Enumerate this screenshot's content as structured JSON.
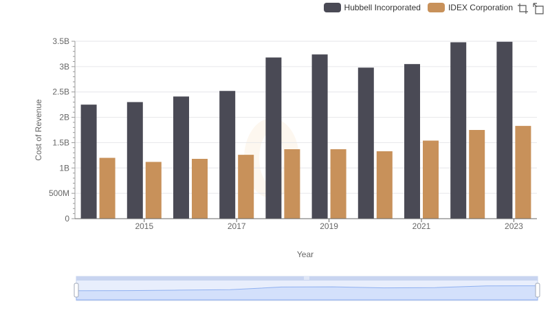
{
  "chart_data": {
    "type": "bar",
    "title": "",
    "xlabel": "Year",
    "ylabel": "Cost of Revenue",
    "categories": [
      "2014",
      "2015",
      "2016",
      "2017",
      "2018",
      "2019",
      "2020",
      "2021",
      "2022",
      "2023"
    ],
    "x_tick_labels": [
      "2015",
      "2017",
      "2019",
      "2021",
      "2023"
    ],
    "y_tick_labels": [
      "0",
      "500M",
      "1B",
      "1.5B",
      "2B",
      "2.5B",
      "3B",
      "3.5B"
    ],
    "ylim": [
      0,
      3500000000
    ],
    "grid": true,
    "legend_position": "top-right",
    "series": [
      {
        "name": "Hubbell Incorporated",
        "color": "#4a4a55",
        "values": [
          2250000000,
          2300000000,
          2410000000,
          2520000000,
          3180000000,
          3240000000,
          2980000000,
          3050000000,
          3480000000,
          3490000000
        ]
      },
      {
        "name": "IDEX Corporation",
        "color": "#c8915a",
        "values": [
          1200000000,
          1120000000,
          1180000000,
          1260000000,
          1370000000,
          1370000000,
          1330000000,
          1540000000,
          1750000000,
          1830000000
        ]
      }
    ]
  },
  "toolbox": {
    "zoom_icon": "zoom-icon",
    "restore_icon": "restore-icon"
  }
}
